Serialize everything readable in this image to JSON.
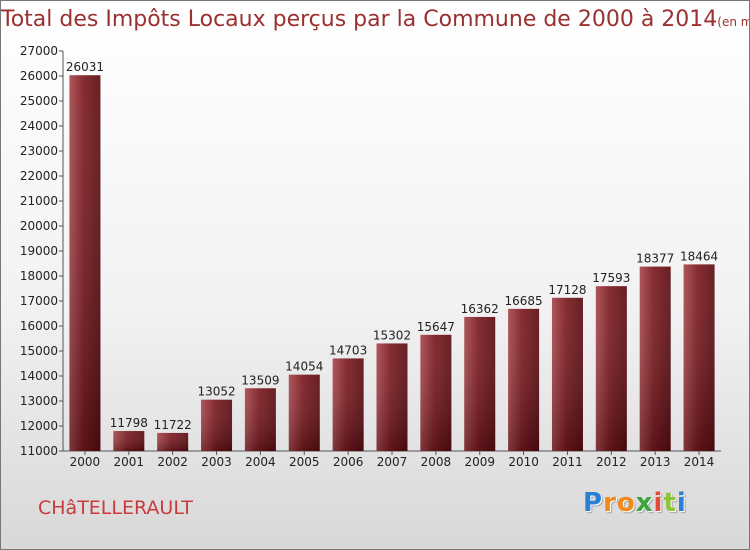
{
  "chart_data": {
    "type": "bar",
    "title": "Total des Impôts Locaux perçus par la Commune de 2000 à 2014",
    "title_unit": "(en milliers d'€)",
    "categories": [
      "2000",
      "2001",
      "2002",
      "2003",
      "2004",
      "2005",
      "2006",
      "2007",
      "2008",
      "2009",
      "2010",
      "2011",
      "2012",
      "2013",
      "2014"
    ],
    "values": [
      26031,
      11798,
      11722,
      13052,
      13509,
      14054,
      14703,
      15302,
      15647,
      16362,
      16685,
      17128,
      17593,
      18377,
      18464
    ],
    "ylim": [
      11000,
      27000
    ],
    "yticks": [
      11000,
      12000,
      13000,
      14000,
      15000,
      16000,
      17000,
      18000,
      19000,
      20000,
      21000,
      22000,
      23000,
      24000,
      25000,
      26000,
      27000
    ],
    "xlabel": "",
    "ylabel": "",
    "grid": false,
    "bar_color": "#7a1a1f"
  },
  "commune_name": "CHâTELLERAULT",
  "logo": {
    "letters": [
      "P",
      "r",
      "o",
      "x",
      "i",
      "t",
      "i"
    ],
    "colors": [
      "#2a7fd4",
      "#f08a1c",
      "#f08a1c",
      "#3aa63a",
      "#e04a3a",
      "#8fc43a",
      "#2a7fd4"
    ]
  }
}
